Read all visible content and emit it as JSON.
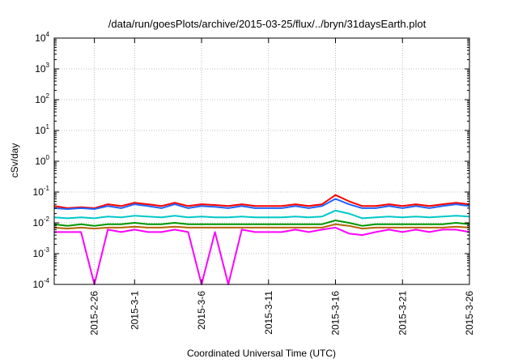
{
  "chart_data": {
    "type": "line",
    "title": "/data/run/goesPlots/archive/2015-03-25/flux/../bryn/31daysEarth.plot",
    "xlabel": "Coordinated Universal Time (UTC)",
    "ylabel": "cSv/day",
    "yscale": "log",
    "ylim": [
      0.0001,
      10000
    ],
    "xlim": [
      "2015-02-23",
      "2015-03-26"
    ],
    "grid": true,
    "x_ticks": [
      "2015-2-26",
      "2015-3-1",
      "2015-3-6",
      "2015-3-11",
      "2015-3-16",
      "2015-3-21",
      "2015-3-26"
    ],
    "y_ticks": [
      {
        "base": "10",
        "exp": "-4",
        "value": 0.0001
      },
      {
        "base": "10",
        "exp": "-3",
        "value": 0.001
      },
      {
        "base": "10",
        "exp": "-2",
        "value": 0.01
      },
      {
        "base": "10",
        "exp": "-1",
        "value": 0.1
      },
      {
        "base": "10",
        "exp": "0",
        "value": 1
      },
      {
        "base": "10",
        "exp": "1",
        "value": 10
      },
      {
        "base": "10",
        "exp": "2",
        "value": 100
      },
      {
        "base": "10",
        "exp": "3",
        "value": 1000
      },
      {
        "base": "10",
        "exp": "4",
        "value": 10000
      }
    ],
    "x": [
      "2015-02-23",
      "2015-02-24",
      "2015-02-25",
      "2015-02-26",
      "2015-02-27",
      "2015-02-28",
      "2015-03-01",
      "2015-03-02",
      "2015-03-03",
      "2015-03-04",
      "2015-03-05",
      "2015-03-06",
      "2015-03-07",
      "2015-03-08",
      "2015-03-09",
      "2015-03-10",
      "2015-03-11",
      "2015-03-12",
      "2015-03-13",
      "2015-03-14",
      "2015-03-15",
      "2015-03-16",
      "2015-03-17",
      "2015-03-18",
      "2015-03-19",
      "2015-03-20",
      "2015-03-21",
      "2015-03-22",
      "2015-03-23",
      "2015-03-24",
      "2015-03-25",
      "2015-03-26"
    ],
    "series": [
      {
        "color": "#ff0000",
        "values": [
          0.035,
          0.03,
          0.032,
          0.03,
          0.04,
          0.035,
          0.045,
          0.04,
          0.035,
          0.045,
          0.035,
          0.04,
          0.038,
          0.035,
          0.04,
          0.035,
          0.035,
          0.035,
          0.04,
          0.035,
          0.04,
          0.08,
          0.05,
          0.035,
          0.035,
          0.04,
          0.035,
          0.04,
          0.035,
          0.04,
          0.045,
          0.04
        ]
      },
      {
        "color": "#1e64ff",
        "values": [
          0.03,
          0.028,
          0.03,
          0.028,
          0.035,
          0.03,
          0.04,
          0.035,
          0.03,
          0.04,
          0.03,
          0.035,
          0.033,
          0.03,
          0.035,
          0.03,
          0.03,
          0.03,
          0.035,
          0.03,
          0.035,
          0.06,
          0.04,
          0.03,
          0.03,
          0.035,
          0.03,
          0.035,
          0.03,
          0.035,
          0.04,
          0.035
        ]
      },
      {
        "color": "#00c8c8",
        "values": [
          0.015,
          0.014,
          0.015,
          0.014,
          0.016,
          0.015,
          0.017,
          0.016,
          0.015,
          0.017,
          0.015,
          0.016,
          0.015,
          0.015,
          0.016,
          0.015,
          0.015,
          0.015,
          0.016,
          0.015,
          0.016,
          0.025,
          0.02,
          0.014,
          0.015,
          0.016,
          0.015,
          0.016,
          0.015,
          0.016,
          0.017,
          0.016
        ]
      },
      {
        "color": "#009600",
        "values": [
          0.009,
          0.008,
          0.009,
          0.008,
          0.009,
          0.009,
          0.01,
          0.009,
          0.009,
          0.01,
          0.009,
          0.009,
          0.009,
          0.009,
          0.009,
          0.009,
          0.009,
          0.009,
          0.009,
          0.009,
          0.009,
          0.012,
          0.01,
          0.008,
          0.009,
          0.009,
          0.009,
          0.009,
          0.009,
          0.009,
          0.01,
          0.009
        ]
      },
      {
        "color": "#b46400",
        "values": [
          0.007,
          0.0065,
          0.007,
          0.0065,
          0.007,
          0.007,
          0.0075,
          0.007,
          0.007,
          0.0075,
          0.007,
          0.007,
          0.007,
          0.007,
          0.007,
          0.007,
          0.007,
          0.007,
          0.007,
          0.007,
          0.007,
          0.009,
          0.008,
          0.0065,
          0.007,
          0.007,
          0.007,
          0.007,
          0.007,
          0.007,
          0.0075,
          0.007
        ]
      },
      {
        "color": "#ff00ff",
        "values": [
          0.005,
          0.005,
          0.005,
          0.0001,
          0.006,
          0.005,
          0.006,
          0.005,
          0.005,
          0.006,
          0.005,
          0.0001,
          0.005,
          0.0001,
          0.006,
          0.005,
          0.005,
          0.005,
          0.006,
          0.005,
          0.006,
          0.007,
          0.0045,
          0.004,
          0.005,
          0.006,
          0.005,
          0.006,
          0.005,
          0.006,
          0.006,
          0.005
        ]
      }
    ]
  }
}
